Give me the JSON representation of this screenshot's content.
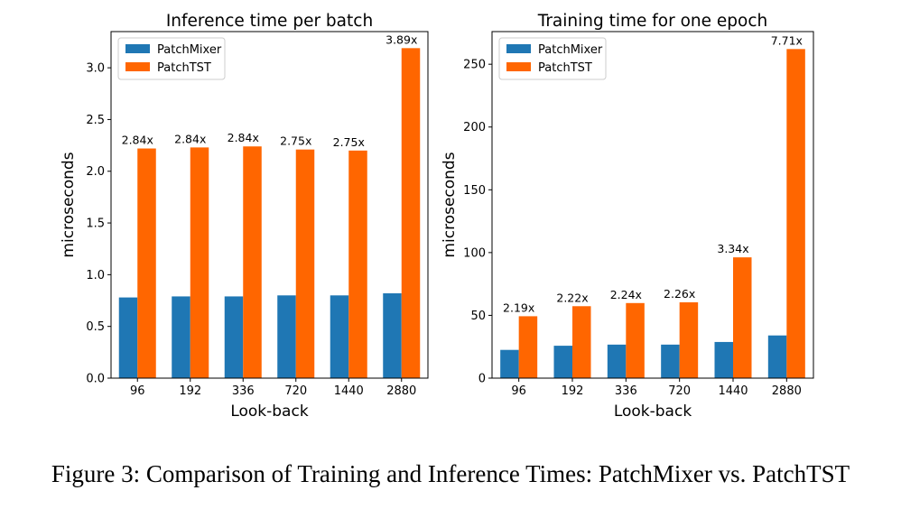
{
  "caption": "Figure 3: Comparison of Training and Inference Times: PatchMixer vs. PatchTST",
  "colors": {
    "patchmixer": "#1f77b4",
    "patchtst": "#ff6600",
    "axis": "#000000"
  },
  "chart_data": [
    {
      "type": "bar",
      "title": "Inference time per batch",
      "xlabel": "Look-back",
      "ylabel": "microseconds",
      "categories": [
        "96",
        "192",
        "336",
        "720",
        "1440",
        "2880"
      ],
      "ylim": [
        0,
        3.35
      ],
      "yticks": [
        0.0,
        0.5,
        1.0,
        1.5,
        2.0,
        2.5,
        3.0
      ],
      "ytick_labels": [
        "0.0",
        "0.5",
        "1.0",
        "1.5",
        "2.0",
        "2.5",
        "3.0"
      ],
      "series": [
        {
          "name": "PatchMixer",
          "values": [
            0.78,
            0.79,
            0.79,
            0.8,
            0.8,
            0.82
          ]
        },
        {
          "name": "PatchTST",
          "values": [
            2.22,
            2.23,
            2.24,
            2.21,
            2.2,
            3.19
          ]
        }
      ],
      "annotations": [
        "2.84x",
        "2.84x",
        "2.84x",
        "2.75x",
        "2.75x",
        "3.89x"
      ],
      "legend": "top-left"
    },
    {
      "type": "bar",
      "title": "Training time for one epoch",
      "xlabel": "Look-back",
      "ylabel": "microseconds",
      "categories": [
        "96",
        "192",
        "336",
        "720",
        "1440",
        "2880"
      ],
      "ylim": [
        0,
        276
      ],
      "yticks": [
        0,
        50,
        100,
        150,
        200,
        250
      ],
      "ytick_labels": [
        "0",
        "50",
        "100",
        "150",
        "200",
        "250"
      ],
      "series": [
        {
          "name": "PatchMixer",
          "values": [
            22.5,
            25.8,
            26.7,
            26.7,
            28.8,
            34.0
          ]
        },
        {
          "name": "PatchTST",
          "values": [
            49.3,
            57.3,
            59.8,
            60.4,
            96.2,
            262.1
          ]
        }
      ],
      "annotations": [
        "2.19x",
        "2.22x",
        "2.24x",
        "2.26x",
        "3.34x",
        "7.71x"
      ],
      "legend": "top-left"
    }
  ]
}
